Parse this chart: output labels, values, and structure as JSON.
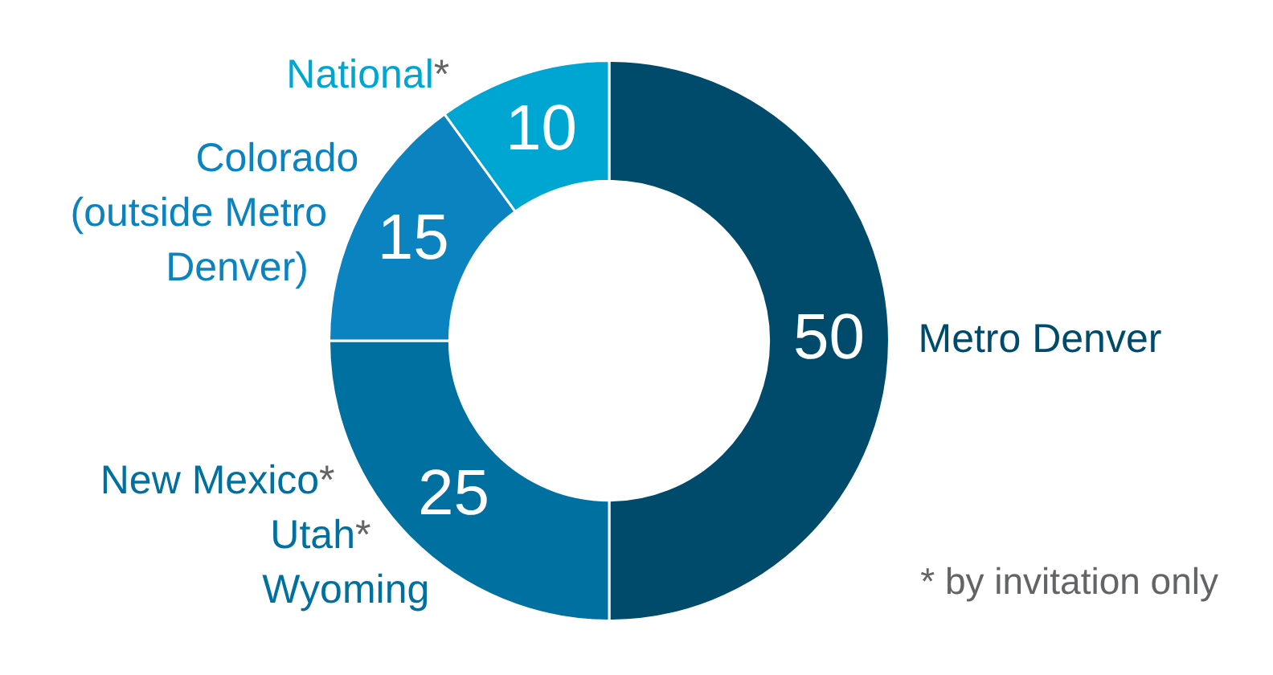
{
  "chart_data": {
    "type": "donut",
    "categories": [
      "Metro Denver",
      "New Mexico*\nUtah*\nWyoming",
      "Colorado\n(outside Metro\nDenver)",
      "National*"
    ],
    "values": [
      50,
      25,
      15,
      10
    ],
    "colors": [
      "#004b6b",
      "#0070a0",
      "#0a83c0",
      "#00a6d2"
    ],
    "data_labels": true,
    "annotations": [
      "* by invitation only"
    ]
  }
}
